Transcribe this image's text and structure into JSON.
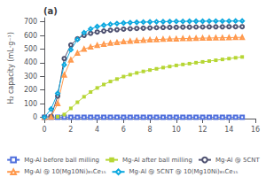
{
  "chart_data": {
    "type": "line",
    "title": "(a)",
    "ylabel": "H₂ capacity (mL·g⁻¹)",
    "xlim": [
      0,
      16
    ],
    "xticks": [
      0,
      2,
      4,
      6,
      8,
      10,
      12,
      14,
      16
    ],
    "ylim": [
      -10,
      730
    ],
    "yticks": [
      0,
      100,
      200,
      300,
      400,
      500,
      600,
      700
    ],
    "grid": false,
    "legend": "bottom",
    "series": [
      {
        "name": "Mg-Al before ball milling",
        "marker": "open-square",
        "x": [
          0,
          0.5,
          1,
          1.5,
          2,
          2.5,
          3,
          3.5,
          4,
          4.5,
          5,
          5.5,
          6,
          6.5,
          7,
          7.5,
          8,
          8.5,
          9,
          9.5,
          10,
          10.5,
          11,
          11.5,
          12,
          12.5,
          13,
          13.5,
          14,
          14.5,
          15
        ],
        "values": [
          0,
          0,
          0,
          0,
          0,
          0,
          0,
          0,
          0,
          0,
          0,
          0,
          0,
          0,
          0,
          0,
          0,
          0,
          0,
          0,
          0,
          0,
          0,
          0,
          0,
          0,
          0,
          0,
          0,
          0,
          0
        ]
      },
      {
        "name": "Mg-Al after ball milling",
        "marker": "filled-square",
        "x": [
          0,
          0.5,
          1,
          1.5,
          2,
          2.5,
          3,
          3.5,
          4,
          4.5,
          5,
          5.5,
          6,
          6.5,
          7,
          7.5,
          8,
          8.5,
          9,
          9.5,
          10,
          10.5,
          11,
          11.5,
          12,
          12.5,
          13,
          13.5,
          14,
          14.5,
          15
        ],
        "values": [
          0,
          0,
          3,
          20,
          65,
          110,
          150,
          185,
          215,
          240,
          262,
          280,
          298,
          312,
          325,
          336,
          346,
          355,
          364,
          372,
          380,
          387,
          393,
          400,
          406,
          412,
          418,
          424,
          430,
          436,
          442
        ]
      },
      {
        "name": "Mg-Al @ 5CNT",
        "marker": "open-circle",
        "x": [
          0,
          0.5,
          1,
          1.5,
          2,
          2.5,
          3,
          3.5,
          4,
          4.5,
          5,
          5.5,
          6,
          6.5,
          7,
          7.5,
          8,
          8.5,
          9,
          9.5,
          10,
          10.5,
          11,
          11.5,
          12,
          12.5,
          13,
          13.5,
          14,
          14.5,
          15
        ],
        "values": [
          0,
          5,
          155,
          430,
          530,
          575,
          600,
          615,
          625,
          632,
          638,
          642,
          646,
          649,
          651,
          653,
          655,
          657,
          658,
          659,
          660,
          661,
          661,
          662,
          662,
          663,
          663,
          663,
          664,
          664,
          664
        ]
      },
      {
        "name": "Mg-Al @ 10(Mg10Ni)₈₅Ce₁₅",
        "marker": "open-triangle",
        "x": [
          0,
          0.5,
          1,
          1.5,
          2,
          2.5,
          3,
          3.5,
          4,
          4.5,
          5,
          5.5,
          6,
          6.5,
          7,
          7.5,
          8,
          8.5,
          9,
          9.5,
          10,
          10.5,
          11,
          11.5,
          12,
          12.5,
          13,
          13.5,
          14,
          14.5,
          15
        ],
        "values": [
          0,
          2,
          100,
          310,
          420,
          470,
          500,
          515,
          527,
          536,
          543,
          549,
          554,
          558,
          562,
          565,
          568,
          570,
          572,
          574,
          575,
          577,
          578,
          579,
          580,
          581,
          582,
          583,
          584,
          585,
          586
        ]
      },
      {
        "name": "Mg-Al @ 5CNT @ 10(Mg10Ni)₈₅Ce₁₅",
        "marker": "open-diamond",
        "x": [
          0,
          0.5,
          1,
          1.5,
          2,
          2.5,
          3,
          3.5,
          4,
          4.5,
          5,
          5.5,
          6,
          6.5,
          7,
          7.5,
          8,
          8.5,
          9,
          9.5,
          10,
          10.5,
          11,
          11.5,
          12,
          12.5,
          13,
          13.5,
          14,
          14.5,
          15
        ],
        "values": [
          0,
          60,
          175,
          385,
          495,
          570,
          620,
          648,
          665,
          675,
          682,
          687,
          691,
          694,
          696,
          698,
          699,
          700,
          701,
          702,
          703,
          703,
          704,
          704,
          704,
          705,
          705,
          705,
          705,
          706,
          706
        ]
      }
    ]
  }
}
